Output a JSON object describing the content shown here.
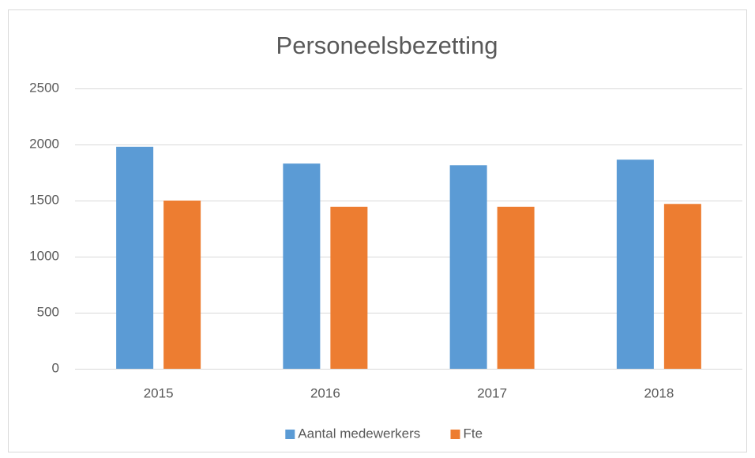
{
  "chart_data": {
    "type": "bar",
    "title": "Personeelsbezetting",
    "categories": [
      "2015",
      "2016",
      "2017",
      "2018"
    ],
    "series": [
      {
        "name": "Aantal medewerkers",
        "color": "#5b9bd5",
        "values": [
          1980,
          1830,
          1815,
          1865
        ]
      },
      {
        "name": "Fte",
        "color": "#ed7d31",
        "values": [
          1500,
          1445,
          1445,
          1470
        ]
      }
    ],
    "ylim": [
      0,
      2500
    ],
    "yticks": [
      0,
      500,
      1000,
      1500,
      2000,
      2500
    ],
    "grid": true,
    "legend": "bottom"
  }
}
